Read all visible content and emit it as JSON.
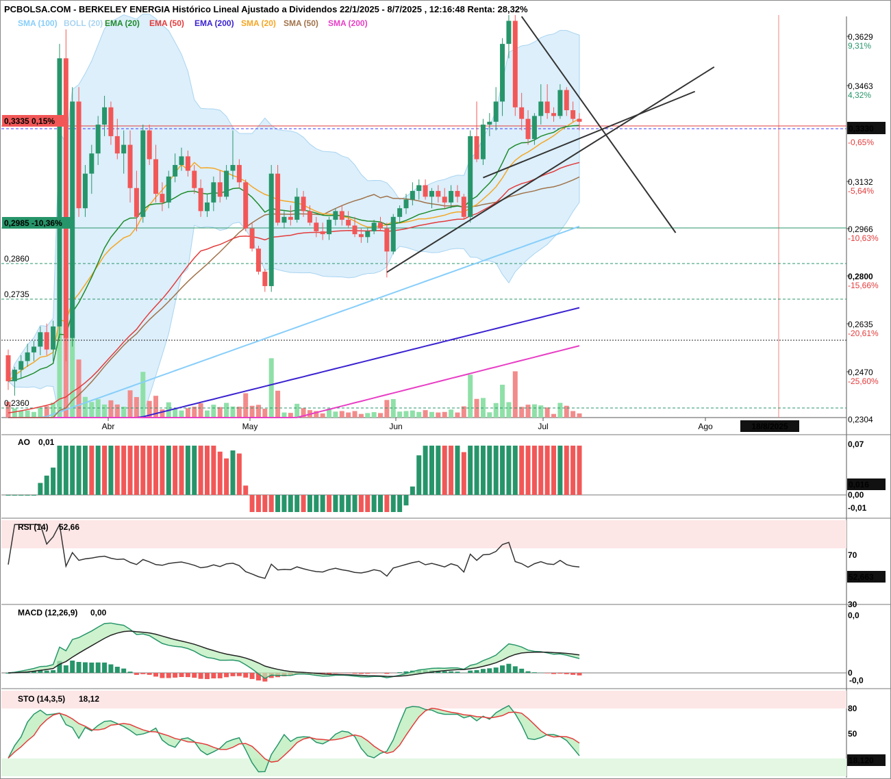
{
  "title": "PCBOLSA.COM - BERKELEY ENERGIA Histórico Lineal Ajustado a Dividendos 22/1/2025 - 8/7/2025 , 12:16:48 Renta: 28,32%",
  "legend": [
    {
      "label": "SMA (100)",
      "color": "#87cefa"
    },
    {
      "label": "BOLL (20)",
      "color": "#a9d4f0"
    },
    {
      "label": "EMA (20)",
      "color": "#1e8a2a"
    },
    {
      "label": "EMA (50)",
      "color": "#e33b3b"
    },
    {
      "label": "EMA (200)",
      "color": "#3a22d0"
    },
    {
      "label": "SMA (20)",
      "color": "#f5a623"
    },
    {
      "label": "SMA (50)",
      "color": "#a0724a"
    },
    {
      "label": "SMA (200)",
      "color": "#e83ec5"
    }
  ],
  "colors": {
    "up": "#27956a",
    "down": "#f25757",
    "vol_up": "#8fe0a8",
    "vol_down": "#f28b8b"
  },
  "price_axis": {
    "ticks": [
      {
        "v": "0,3629",
        "p": "9,31%",
        "c": "#27956a"
      },
      {
        "v": "0,3463",
        "p": "4,32%",
        "c": "#27956a"
      },
      {
        "v": "0,3132",
        "p": "-5,64%",
        "c": "#e33b3b"
      },
      {
        "v": "0,2966",
        "p": "-10,63%",
        "c": "#e33b3b"
      },
      {
        "v": "0,2800",
        "p": "-15,66%",
        "c": "#e33b3b"
      },
      {
        "v": "0,2635",
        "p": "-20,61%",
        "c": "#e33b3b"
      },
      {
        "v": "0,2470",
        "p": "-25,60%",
        "c": "#e33b3b"
      }
    ],
    "current": "0,3330",
    "current_pct": "-0,65%",
    "partial": "0,2304"
  },
  "left_labels": {
    "l1": "0,3335  0,15%",
    "l2": "0,2985  -10,36%",
    "l3": "0,2860",
    "l4": "0,2735",
    "l5": "0,2360"
  },
  "months": [
    "Abr",
    "May",
    "Jun",
    "Jul",
    "Ago"
  ],
  "date_box": "18/8/2025",
  "ao": {
    "label": "AO",
    "value": "0,01",
    "ticks": [
      "0,07",
      "0,00",
      "-0,01"
    ],
    "current": "0,016"
  },
  "rsi": {
    "label": "RSI (14)",
    "value": "52,66",
    "ticks": [
      "70",
      "30"
    ],
    "current": "52,663"
  },
  "macd": {
    "label": "MACD (12,26,9)",
    "value": "0,00",
    "ticks": [
      "0,0",
      "0",
      "-0,0"
    ]
  },
  "sto": {
    "label": "STO (14,3,5)",
    "value": "18,12",
    "ticks": [
      "80",
      "50"
    ],
    "current": "18,120"
  },
  "chart_data": {
    "type": "candlestick",
    "title": "PCBOLSA.COM - BERKELEY ENERGIA Histórico Lineal Ajustado a Dividendos 22/1/2025 - 8/7/2025 , 12:16:48 Renta: 28,32%",
    "x_labels": [
      "Abr",
      "May",
      "Jun",
      "Jul",
      "Ago"
    ],
    "ylim": [
      0.2304,
      0.37
    ],
    "candles": [
      [
        0.252,
        0.254,
        0.24,
        0.243
      ],
      [
        0.243,
        0.248,
        0.238,
        0.247
      ],
      [
        0.247,
        0.252,
        0.244,
        0.25
      ],
      [
        0.25,
        0.256,
        0.248,
        0.253
      ],
      [
        0.253,
        0.257,
        0.25,
        0.255
      ],
      [
        0.255,
        0.262,
        0.252,
        0.26
      ],
      [
        0.26,
        0.263,
        0.252,
        0.254
      ],
      [
        0.254,
        0.264,
        0.25,
        0.262
      ],
      [
        0.262,
        0.36,
        0.258,
        0.355
      ],
      [
        0.355,
        0.365,
        0.25,
        0.258
      ],
      [
        0.258,
        0.345,
        0.255,
        0.34
      ],
      [
        0.34,
        0.345,
        0.3,
        0.303
      ],
      [
        0.303,
        0.318,
        0.3,
        0.315
      ],
      [
        0.315,
        0.325,
        0.308,
        0.322
      ],
      [
        0.322,
        0.335,
        0.318,
        0.332
      ],
      [
        0.332,
        0.342,
        0.328,
        0.338
      ],
      [
        0.338,
        0.34,
        0.325,
        0.328
      ],
      [
        0.328,
        0.334,
        0.32,
        0.322
      ],
      [
        0.322,
        0.33,
        0.315,
        0.325
      ],
      [
        0.325,
        0.33,
        0.305,
        0.31
      ],
      [
        0.31,
        0.316,
        0.295,
        0.3
      ],
      [
        0.3,
        0.332,
        0.298,
        0.33
      ],
      [
        0.33,
        0.332,
        0.318,
        0.32
      ],
      [
        0.32,
        0.325,
        0.305,
        0.308
      ],
      [
        0.308,
        0.312,
        0.302,
        0.305
      ],
      [
        0.305,
        0.316,
        0.303,
        0.314
      ],
      [
        0.314,
        0.322,
        0.312,
        0.318
      ],
      [
        0.318,
        0.324,
        0.316,
        0.321
      ],
      [
        0.321,
        0.323,
        0.314,
        0.316
      ],
      [
        0.316,
        0.318,
        0.308,
        0.31
      ],
      [
        0.31,
        0.313,
        0.3,
        0.302
      ],
      [
        0.302,
        0.308,
        0.3,
        0.305
      ],
      [
        0.305,
        0.314,
        0.302,
        0.312
      ],
      [
        0.312,
        0.316,
        0.305,
        0.307
      ],
      [
        0.307,
        0.318,
        0.306,
        0.316
      ],
      [
        0.316,
        0.33,
        0.313,
        0.318
      ],
      [
        0.318,
        0.32,
        0.31,
        0.312
      ],
      [
        0.312,
        0.313,
        0.295,
        0.296
      ],
      [
        0.296,
        0.298,
        0.288,
        0.289
      ],
      [
        0.289,
        0.29,
        0.28,
        0.281
      ],
      [
        0.281,
        0.282,
        0.274,
        0.276
      ],
      [
        0.276,
        0.318,
        0.274,
        0.315
      ],
      [
        0.315,
        0.318,
        0.297,
        0.298
      ],
      [
        0.298,
        0.302,
        0.296,
        0.3
      ],
      [
        0.3,
        0.304,
        0.297,
        0.299
      ],
      [
        0.299,
        0.31,
        0.298,
        0.307
      ],
      [
        0.307,
        0.309,
        0.3,
        0.302
      ],
      [
        0.302,
        0.304,
        0.297,
        0.298
      ],
      [
        0.298,
        0.3,
        0.293,
        0.295
      ],
      [
        0.295,
        0.298,
        0.292,
        0.294
      ],
      [
        0.294,
        0.3,
        0.292,
        0.299
      ],
      [
        0.299,
        0.303,
        0.297,
        0.302
      ],
      [
        0.302,
        0.304,
        0.297,
        0.299
      ],
      [
        0.299,
        0.302,
        0.296,
        0.297
      ],
      [
        0.297,
        0.3,
        0.293,
        0.294
      ],
      [
        0.294,
        0.296,
        0.291,
        0.293
      ],
      [
        0.293,
        0.296,
        0.291,
        0.295
      ],
      [
        0.295,
        0.299,
        0.294,
        0.298
      ],
      [
        0.298,
        0.3,
        0.295,
        0.296
      ],
      [
        0.296,
        0.298,
        0.279,
        0.288
      ],
      [
        0.288,
        0.301,
        0.287,
        0.3
      ],
      [
        0.3,
        0.304,
        0.298,
        0.303
      ],
      [
        0.303,
        0.308,
        0.301,
        0.306
      ],
      [
        0.306,
        0.312,
        0.304,
        0.309
      ],
      [
        0.309,
        0.313,
        0.306,
        0.311
      ],
      [
        0.311,
        0.313,
        0.306,
        0.307
      ],
      [
        0.307,
        0.31,
        0.303,
        0.309
      ],
      [
        0.309,
        0.311,
        0.305,
        0.307
      ],
      [
        0.307,
        0.31,
        0.303,
        0.305
      ],
      [
        0.305,
        0.311,
        0.303,
        0.309
      ],
      [
        0.309,
        0.311,
        0.305,
        0.307
      ],
      [
        0.307,
        0.308,
        0.299,
        0.3
      ],
      [
        0.3,
        0.33,
        0.298,
        0.328
      ],
      [
        0.328,
        0.34,
        0.319,
        0.32
      ],
      [
        0.32,
        0.334,
        0.318,
        0.332
      ],
      [
        0.332,
        0.336,
        0.328,
        0.333
      ],
      [
        0.333,
        0.345,
        0.33,
        0.34
      ],
      [
        0.34,
        0.362,
        0.335,
        0.36
      ],
      [
        0.36,
        0.37,
        0.355,
        0.368
      ],
      [
        0.368,
        0.37,
        0.335,
        0.338
      ],
      [
        0.338,
        0.343,
        0.33,
        0.334
      ],
      [
        0.334,
        0.337,
        0.325,
        0.327
      ],
      [
        0.327,
        0.336,
        0.325,
        0.335
      ],
      [
        0.335,
        0.346,
        0.332,
        0.34
      ],
      [
        0.34,
        0.346,
        0.334,
        0.336
      ],
      [
        0.336,
        0.338,
        0.333,
        0.335
      ],
      [
        0.335,
        0.346,
        0.334,
        0.344
      ],
      [
        0.344,
        0.345,
        0.335,
        0.337
      ],
      [
        0.337,
        0.34,
        0.333,
        0.334
      ],
      [
        0.334,
        0.336,
        0.33,
        0.333
      ]
    ]
  }
}
